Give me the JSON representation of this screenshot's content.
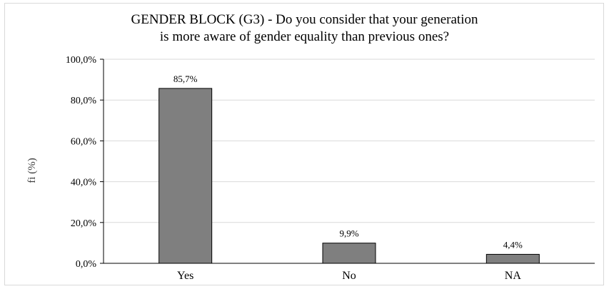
{
  "chart_data": {
    "type": "bar",
    "title_lines": [
      "GENDER BLOCK (G3) -  Do you consider that your generation",
      "is more aware of gender equality than previous ones?"
    ],
    "ylabel": "fi (%)",
    "xlabel": "",
    "categories": [
      "Yes",
      "No",
      "NA"
    ],
    "values": [
      85.7,
      9.9,
      4.4
    ],
    "value_labels": [
      "85,7%",
      "9,9%",
      "4,4%"
    ],
    "ylim": [
      0,
      100
    ],
    "yticks": [
      0,
      20,
      40,
      60,
      80,
      100
    ],
    "ytick_labels": [
      "0,0%",
      "20,0%",
      "40,0%",
      "60,0%",
      "80,0%",
      "100,0%"
    ],
    "grid": true,
    "legend": "none",
    "colors": {
      "bar": "#7f7f7f",
      "bar_stroke": "#000000",
      "grid": "#d9d9d9",
      "axis": "#000000"
    }
  }
}
